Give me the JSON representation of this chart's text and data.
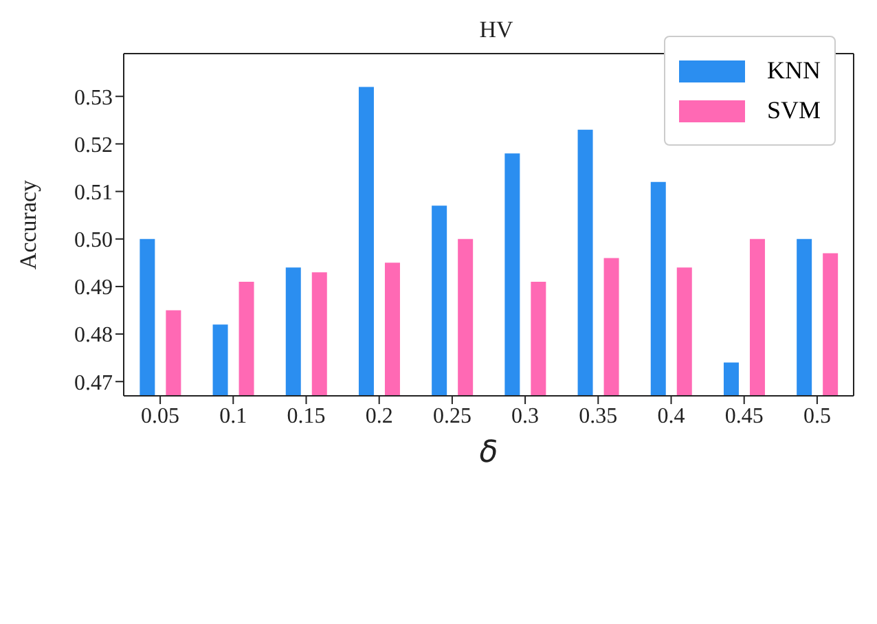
{
  "chart_data": {
    "type": "bar",
    "title": "HV",
    "xlabel": "δ",
    "ylabel": "Accuracy",
    "categories": [
      "0.05",
      "0.1",
      "0.15",
      "0.2",
      "0.25",
      "0.3",
      "0.35",
      "0.4",
      "0.45",
      "0.5"
    ],
    "series": [
      {
        "name": "KNN",
        "color": "#2b8ef0",
        "values": [
          0.5,
          0.482,
          0.494,
          0.532,
          0.507,
          0.518,
          0.523,
          0.512,
          0.474,
          0.5
        ]
      },
      {
        "name": "SVM",
        "color": "#ff69b4",
        "values": [
          0.485,
          0.491,
          0.493,
          0.495,
          0.5,
          0.491,
          0.496,
          0.494,
          0.5,
          0.497
        ]
      }
    ],
    "ylim": [
      0.467,
      0.539
    ],
    "yticks": [
      0.47,
      0.48,
      0.49,
      {
        "value": 0.5,
        "label": "0.50"
      },
      0.51,
      0.52,
      0.53
    ],
    "grid": false,
    "legend": "top right"
  }
}
